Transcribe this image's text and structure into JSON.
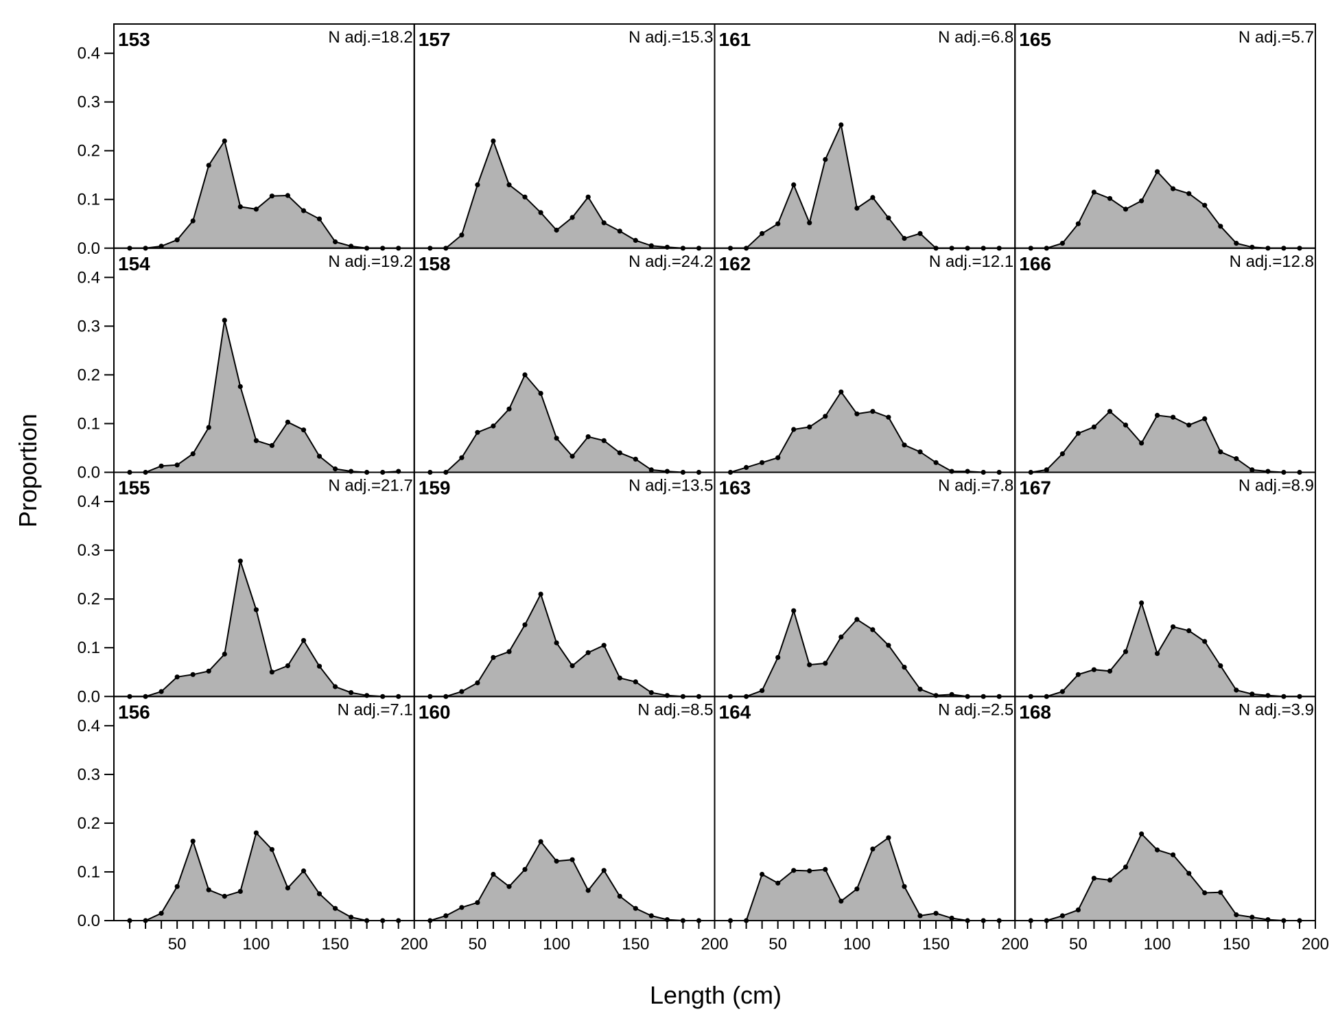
{
  "chart_data": {
    "type": "area",
    "xlabel": "Length (cm)",
    "ylabel": "Proportion",
    "xlim": [
      10,
      200
    ],
    "ylim": [
      0,
      0.46
    ],
    "x_ticks": [
      50,
      100,
      150,
      200
    ],
    "y_ticks": [
      0.0,
      0.1,
      0.2,
      0.3,
      0.4
    ],
    "y_tick_labels": [
      "0.0",
      "0.1",
      "0.2",
      "0.3",
      "0.4"
    ],
    "grid": false,
    "fill_color": "#b3b3b3",
    "line_color": "#000000",
    "x": [
      20,
      30,
      40,
      50,
      60,
      70,
      80,
      90,
      100,
      110,
      120,
      130,
      140,
      150,
      160,
      170,
      180,
      190
    ],
    "panels": [
      {
        "id": "153",
        "n_label": "N adj.=18.2",
        "values": [
          0,
          0,
          0.004,
          0.017,
          0.056,
          0.17,
          0.22,
          0.085,
          0.08,
          0.107,
          0.108,
          0.077,
          0.06,
          0.013,
          0.004,
          0,
          0,
          0
        ]
      },
      {
        "id": "157",
        "n_label": "N adj.=15.3",
        "values": [
          0,
          0,
          0.027,
          0.13,
          0.22,
          0.13,
          0.105,
          0.073,
          0.037,
          0.063,
          0.105,
          0.052,
          0.035,
          0.016,
          0.005,
          0.002,
          0,
          0
        ]
      },
      {
        "id": "161",
        "n_label": "N adj.=6.8",
        "values": [
          0,
          0,
          0.03,
          0.05,
          0.13,
          0.052,
          0.182,
          0.253,
          0.082,
          0.104,
          0.062,
          0.02,
          0.03,
          0,
          0,
          0,
          0,
          0
        ]
      },
      {
        "id": "165",
        "n_label": "N adj.=5.7",
        "values": [
          0,
          0,
          0.01,
          0.05,
          0.115,
          0.102,
          0.08,
          0.097,
          0.157,
          0.122,
          0.112,
          0.088,
          0.045,
          0.01,
          0.002,
          0,
          0,
          0
        ]
      },
      {
        "id": "154",
        "n_label": "N adj.=19.2",
        "values": [
          0,
          0,
          0.013,
          0.015,
          0.038,
          0.092,
          0.312,
          0.176,
          0.065,
          0.055,
          0.103,
          0.087,
          0.033,
          0.007,
          0.002,
          0,
          0,
          0.002
        ]
      },
      {
        "id": "158",
        "n_label": "N adj.=24.2",
        "values": [
          0,
          0,
          0.03,
          0.082,
          0.095,
          0.13,
          0.2,
          0.162,
          0.07,
          0.033,
          0.073,
          0.065,
          0.04,
          0.027,
          0.005,
          0.002,
          0,
          0
        ]
      },
      {
        "id": "162",
        "n_label": "N adj.=12.1",
        "values": [
          0,
          0.01,
          0.02,
          0.03,
          0.088,
          0.093,
          0.115,
          0.165,
          0.12,
          0.125,
          0.113,
          0.056,
          0.042,
          0.02,
          0.002,
          0.002,
          0,
          0
        ]
      },
      {
        "id": "166",
        "n_label": "N adj.=12.8",
        "values": [
          0,
          0.005,
          0.038,
          0.08,
          0.093,
          0.125,
          0.097,
          0.06,
          0.117,
          0.113,
          0.097,
          0.11,
          0.042,
          0.028,
          0.005,
          0.002,
          0,
          0
        ]
      },
      {
        "id": "155",
        "n_label": "N adj.=21.7",
        "values": [
          0,
          0,
          0.01,
          0.04,
          0.045,
          0.052,
          0.087,
          0.278,
          0.178,
          0.05,
          0.063,
          0.115,
          0.062,
          0.02,
          0.008,
          0.002,
          0,
          0
        ]
      },
      {
        "id": "159",
        "n_label": "N adj.=13.5",
        "values": [
          0,
          0,
          0.01,
          0.028,
          0.08,
          0.092,
          0.147,
          0.21,
          0.11,
          0.063,
          0.09,
          0.105,
          0.038,
          0.03,
          0.008,
          0.002,
          0,
          0
        ]
      },
      {
        "id": "163",
        "n_label": "N adj.=7.8",
        "values": [
          0,
          0,
          0.012,
          0.08,
          0.176,
          0.065,
          0.068,
          0.122,
          0.158,
          0.137,
          0.105,
          0.06,
          0.015,
          0.002,
          0.004,
          0,
          0,
          0
        ]
      },
      {
        "id": "167",
        "n_label": "N adj.=8.9",
        "values": [
          0,
          0,
          0.01,
          0.045,
          0.055,
          0.052,
          0.092,
          0.192,
          0.088,
          0.143,
          0.135,
          0.113,
          0.063,
          0.013,
          0.005,
          0.002,
          0,
          0
        ]
      },
      {
        "id": "156",
        "n_label": "N adj.=7.1",
        "values": [
          0,
          0,
          0.015,
          0.07,
          0.163,
          0.063,
          0.05,
          0.06,
          0.18,
          0.146,
          0.067,
          0.102,
          0.055,
          0.025,
          0.007,
          0,
          0,
          0
        ]
      },
      {
        "id": "160",
        "n_label": "N adj.=8.5",
        "values": [
          0,
          0.01,
          0.027,
          0.037,
          0.095,
          0.07,
          0.105,
          0.162,
          0.122,
          0.125,
          0.062,
          0.103,
          0.05,
          0.025,
          0.01,
          0.002,
          0,
          0
        ]
      },
      {
        "id": "164",
        "n_label": "N adj.=2.5",
        "values": [
          0,
          0,
          0.095,
          0.077,
          0.103,
          0.102,
          0.105,
          0.04,
          0.065,
          0.147,
          0.17,
          0.07,
          0.01,
          0.015,
          0.005,
          0,
          0,
          0
        ]
      },
      {
        "id": "168",
        "n_label": "N adj.=3.9",
        "values": [
          0,
          0,
          0.01,
          0.022,
          0.087,
          0.083,
          0.11,
          0.178,
          0.145,
          0.135,
          0.097,
          0.057,
          0.058,
          0.012,
          0.007,
          0.002,
          0,
          0
        ]
      }
    ]
  }
}
